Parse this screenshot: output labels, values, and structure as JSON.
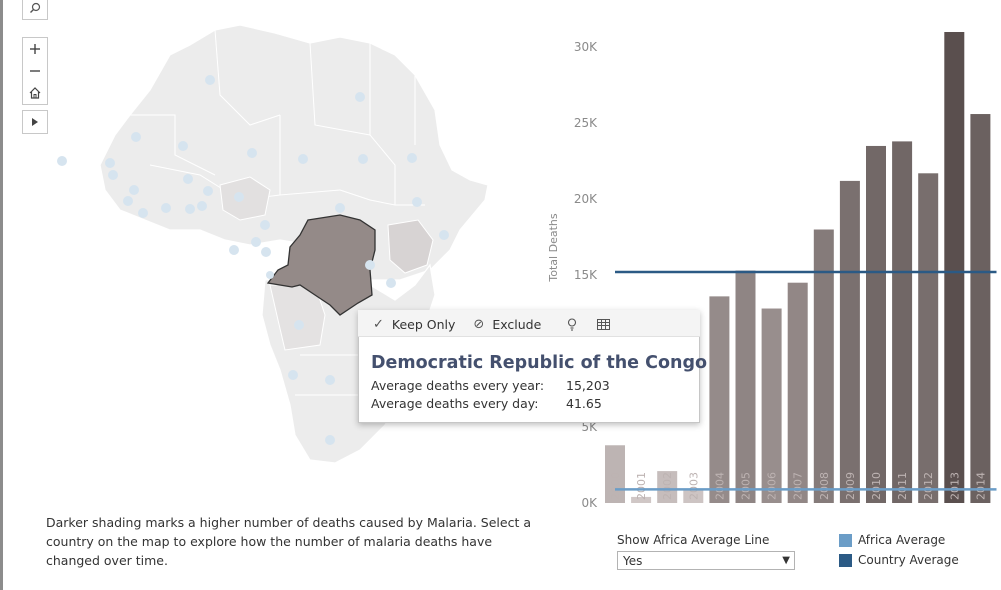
{
  "description": "Darker shading marks a higher number of deaths caused by Malaria. Select a country on the map to explore how the number of malaria deaths have changed over time.",
  "map_tools": {
    "search": "search-icon",
    "zoom_in": "plus-icon",
    "zoom_out": "minus-icon",
    "home": "home-icon",
    "expand": "play-arrow-icon"
  },
  "tooltip": {
    "keep_only": "Keep Only",
    "exclude": "Exclude",
    "country": "Democratic Republic of the Congo",
    "rows": [
      {
        "label": "Average deaths every year:",
        "value": "15,203"
      },
      {
        "label": "Average deaths every day:",
        "value": "41.65"
      }
    ]
  },
  "controls": {
    "avg_line_label": "Show Africa Average Line",
    "avg_line_value": "Yes"
  },
  "legend": [
    {
      "label": "Africa Average",
      "color": "#6b9dc7"
    },
    {
      "label": "Country Average",
      "color": "#2b5a85"
    }
  ],
  "colors": {
    "selected_country": "#948a88",
    "map_land": "#ececec",
    "bar_dark": "#5a4f4e",
    "bar_light": "#d4cbca"
  },
  "chart_data": {
    "type": "bar",
    "ylabel": "Total Deaths",
    "ylim": [
      0,
      31000
    ],
    "yticks": [
      0,
      5000,
      10000,
      15000,
      20000,
      25000,
      30000
    ],
    "ytick_labels": [
      "0K",
      "5K",
      "10K",
      "15K",
      "20K",
      "25K",
      "30K"
    ],
    "categories": [
      "2000",
      "2001",
      "2002",
      "2003",
      "2004",
      "2005",
      "2006",
      "2007",
      "2008",
      "2009",
      "2010",
      "2011",
      "2012",
      "2013",
      "2014"
    ],
    "values": [
      3800,
      400,
      2100,
      900,
      13600,
      15300,
      12800,
      14500,
      18000,
      21200,
      23500,
      23800,
      21700,
      31000,
      25600
    ],
    "country_average": 15203,
    "africa_average": 900
  }
}
